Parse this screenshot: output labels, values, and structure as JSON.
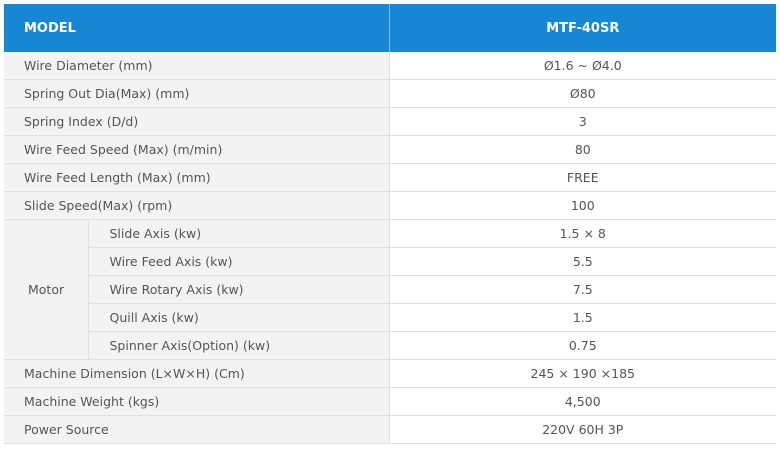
{
  "header": {
    "model_label": "MODEL",
    "model_value": "MTF-40SR"
  },
  "rows": [
    {
      "label": "Wire Diameter (mm)",
      "value": "Ø1.6 ~ Ø4.0"
    },
    {
      "label": "Spring Out Dia(Max) (mm)",
      "value": "Ø80"
    },
    {
      "label": "Spring Index (D/d)",
      "value": "3"
    },
    {
      "label": "Wire Feed Speed (Max) (m/min)",
      "value": "80"
    },
    {
      "label": "Wire Feed Length (Max) (mm)",
      "value": "FREE"
    },
    {
      "label": "Slide Speed(Max) (rpm)",
      "value": "100"
    }
  ],
  "motor": {
    "label": "Motor",
    "items": [
      {
        "label": "Slide Axis (kw)",
        "value": "1.5 × 8"
      },
      {
        "label": "Wire Feed Axis (kw)",
        "value": "5.5"
      },
      {
        "label": "Wire Rotary Axis (kw)",
        "value": "7.5"
      },
      {
        "label": "Quill Axis (kw)",
        "value": "1.5"
      },
      {
        "label": "Spinner Axis(Option)  (kw)",
        "value": "0.75"
      }
    ]
  },
  "rows_after": [
    {
      "label": "Machine Dimension (L×W×H) (Cm)",
      "value": "245 × 190 ×185"
    },
    {
      "label": "Machine Weight (kgs)",
      "value": "4,500"
    },
    {
      "label": "Power Source",
      "value": "220V 60H 3P"
    }
  ]
}
